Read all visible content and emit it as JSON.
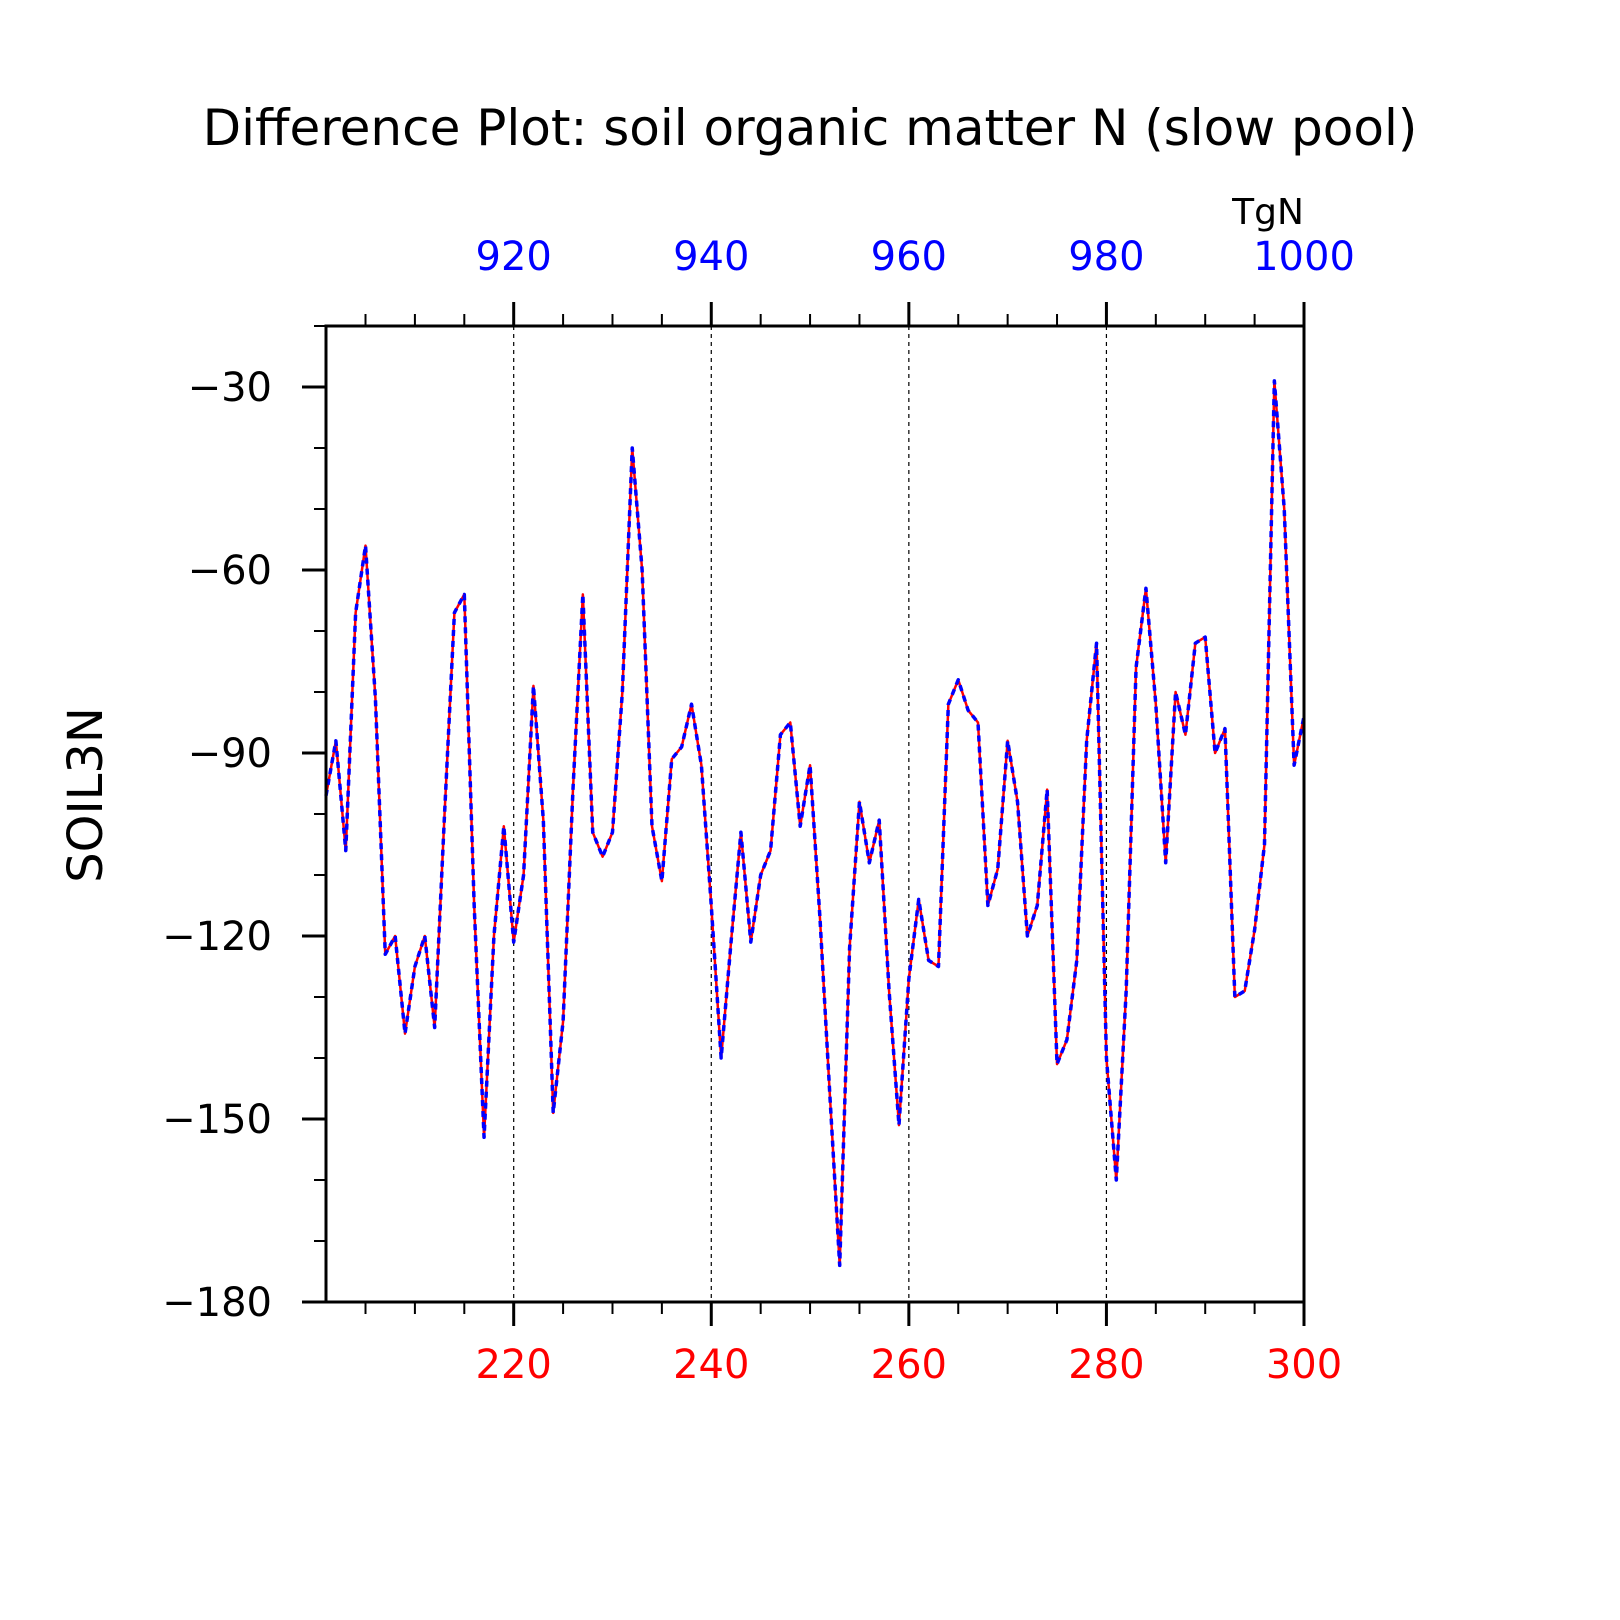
{
  "chart_data": {
    "type": "line",
    "title": "Difference Plot: soil organic matter N (slow pool)",
    "ylabel": "SOIL3N",
    "units": "TgN",
    "xlim_bottom": [
      201,
      300
    ],
    "xlim_top": [
      901,
      1000
    ],
    "ylim": [
      -180,
      -20
    ],
    "x_ticks_bottom": [
      220,
      240,
      260,
      280,
      300
    ],
    "x_ticks_top": [
      920,
      940,
      960,
      980,
      1000
    ],
    "y_ticks": [
      -180,
      -150,
      -120,
      -90,
      -60,
      -30
    ],
    "grid": "vertical dashed lines at major x ticks",
    "colors": {
      "bottom_axis": "#ff0000",
      "top_axis": "#0000ff",
      "text": "#000000"
    },
    "series": [
      {
        "axis": "bottom",
        "color": "#ff0000",
        "style": "solid"
      },
      {
        "axis": "top",
        "color": "#0000ff",
        "style": "dashed"
      }
    ],
    "x_bottom": [
      201,
      202,
      203,
      204,
      205,
      206,
      207,
      208,
      209,
      210,
      211,
      212,
      213,
      214,
      215,
      216,
      217,
      218,
      219,
      220,
      221,
      222,
      223,
      224,
      225,
      226,
      227,
      228,
      229,
      230,
      231,
      232,
      233,
      234,
      235,
      236,
      237,
      238,
      239,
      240,
      241,
      242,
      243,
      244,
      245,
      246,
      247,
      248,
      249,
      250,
      251,
      252,
      253,
      254,
      255,
      256,
      257,
      258,
      259,
      260,
      261,
      262,
      263,
      264,
      265,
      266,
      267,
      268,
      269,
      270,
      271,
      272,
      273,
      274,
      275,
      276,
      277,
      278,
      279,
      280,
      281,
      282,
      283,
      284,
      285,
      286,
      287,
      288,
      289,
      290,
      291,
      292,
      293,
      294,
      295,
      296,
      297,
      298,
      299,
      300
    ],
    "values": [
      -97,
      -88,
      -106,
      -67,
      -56,
      -81,
      -123,
      -120,
      -136,
      -125,
      -120,
      -135,
      -100,
      -67,
      -64,
      -115,
      -153,
      -120,
      -102,
      -121,
      -110,
      -79,
      -101,
      -149,
      -134,
      -96,
      -64,
      -103,
      -107,
      -103,
      -80,
      -40,
      -60,
      -102,
      -111,
      -91,
      -89,
      -82,
      -92,
      -115,
      -140,
      -121,
      -103,
      -121,
      -110,
      -106,
      -87,
      -85,
      -102,
      -92,
      -117,
      -146,
      -174,
      -122,
      -98,
      -108,
      -101,
      -129,
      -151,
      -127,
      -114,
      -124,
      -125,
      -82,
      -78,
      -83,
      -85,
      -115,
      -109,
      -88,
      -98,
      -120,
      -115,
      -96,
      -141,
      -137,
      -124,
      -88,
      -72,
      -140,
      -160,
      -129,
      -76,
      -63,
      -82,
      -108,
      -80,
      -87,
      -72,
      -71,
      -90,
      -86,
      -130,
      -129,
      -119,
      -105,
      -29,
      -50,
      -92,
      -84
    ]
  }
}
